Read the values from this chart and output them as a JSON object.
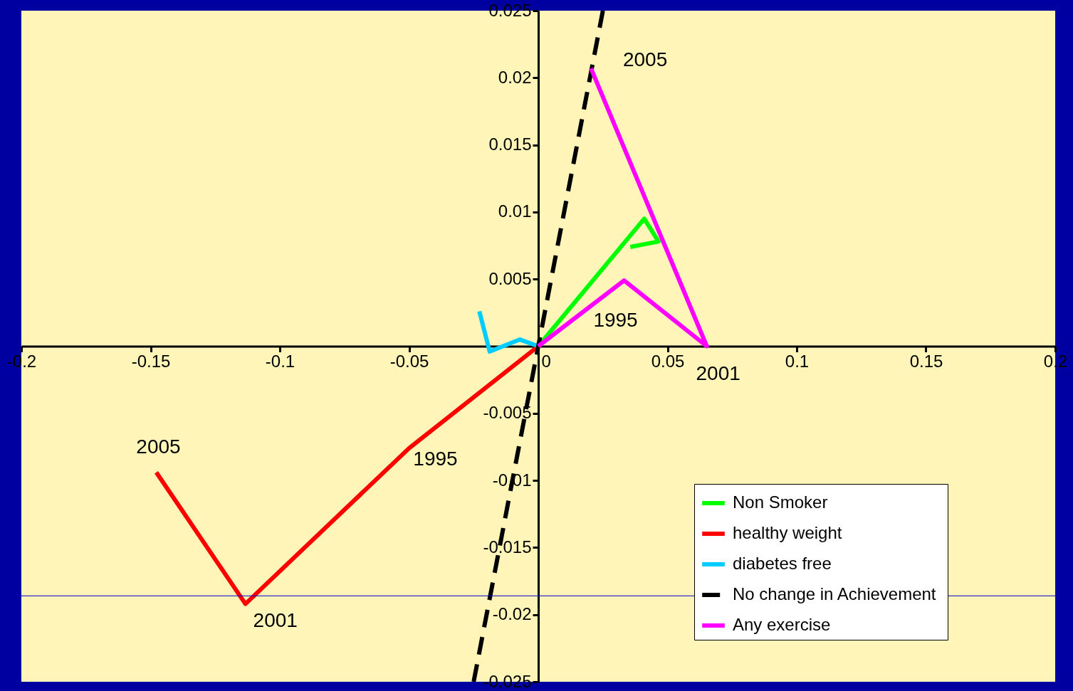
{
  "chart_data": {
    "type": "line",
    "xlim": [
      -0.2,
      0.2
    ],
    "ylim": [
      -0.025,
      0.025
    ],
    "xticks": [
      -0.2,
      -0.15,
      -0.1,
      -0.05,
      0,
      0.05,
      0.1,
      0.15,
      0.2
    ],
    "yticks": [
      -0.025,
      -0.02,
      -0.015,
      -0.01,
      -0.005,
      {
        "value": 0,
        "label": null
      },
      0.005,
      0.01,
      0.015,
      0.02,
      0.025
    ],
    "grid": false,
    "legend": "bottom right",
    "marker": "none",
    "series": [
      {
        "name": "Non Smoker",
        "color": "#00ff00",
        "line_style": "solid",
        "x": [
          0,
          0.041,
          0.0465,
          0.0356
        ],
        "values": [
          0,
          0.0095,
          0.0078,
          0.0074
        ]
      },
      {
        "name": "healthy weight",
        "color": "#ff0000",
        "line_style": "solid",
        "x": [
          0,
          -0.05,
          -0.1133,
          -0.1478
        ],
        "values": [
          0,
          -0.0076,
          -0.0192,
          -0.0094
        ]
      },
      {
        "name": "diabetes free",
        "color": "#00ccff",
        "line_style": "solid",
        "x": [
          0,
          -0.0071,
          -0.0188,
          -0.0228
        ],
        "values": [
          0,
          0.0005,
          -0.0004,
          0.0026
        ]
      },
      {
        "name": "No change in  Achievement",
        "color": "#000000",
        "line_style": "dashed",
        "x": [
          -0.025,
          0.025
        ],
        "values": [
          -0.025,
          0.025
        ]
      },
      {
        "name": "Any exercise",
        "color": "#ff00ff",
        "line_style": "solid",
        "x": [
          0,
          0.0332,
          0.0652,
          0.0204
        ],
        "values": [
          0,
          0.0049,
          0,
          0.0207
        ]
      }
    ],
    "ref_lines": [
      {
        "axis": "y",
        "value": -0.0186,
        "color": "#0000cc"
      }
    ],
    "annotations": [
      {
        "text": "2005",
        "x": 0.0204,
        "y": 0.0207
      },
      {
        "text": "1995",
        "x": 0.0332,
        "y": 0.0049
      },
      {
        "text": "2001",
        "x": 0.0652,
        "y": 0
      },
      {
        "text": "2005",
        "x": -0.1478,
        "y": -0.0094
      },
      {
        "text": "1995",
        "x": -0.05,
        "y": -0.0076
      },
      {
        "text": "2001",
        "x": -0.1133,
        "y": -0.0192
      }
    ]
  }
}
